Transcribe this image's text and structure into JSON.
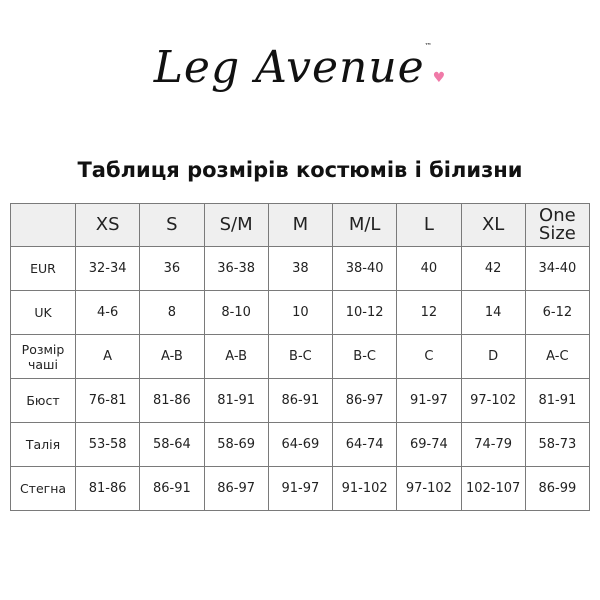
{
  "brand": {
    "logo_text": "Leg Avenue",
    "trademark": "™",
    "accent_color": "#f07aa8"
  },
  "title": "Таблиця розмірів костюмів і білизни",
  "table": {
    "columns": [
      "",
      "XS",
      "S",
      "S/M",
      "M",
      "M/L",
      "L",
      "XL",
      "One Size"
    ],
    "rows": [
      {
        "label": "EUR",
        "values": [
          "32-34",
          "36",
          "36-38",
          "38",
          "38-40",
          "40",
          "42",
          "34-40"
        ]
      },
      {
        "label": "UK",
        "values": [
          "4-6",
          "8",
          "8-10",
          "10",
          "10-12",
          "12",
          "14",
          "6-12"
        ]
      },
      {
        "label": "Розмір чаші",
        "values": [
          "A",
          "A-B",
          "A-B",
          "B-C",
          "B-C",
          "C",
          "D",
          "A-C"
        ]
      },
      {
        "label": "Бюст",
        "values": [
          "76-81",
          "81-86",
          "81-91",
          "86-91",
          "86-97",
          "91-97",
          "97-102",
          "81-91"
        ]
      },
      {
        "label": "Талія",
        "values": [
          "53-58",
          "58-64",
          "58-69",
          "64-69",
          "64-74",
          "69-74",
          "74-79",
          "58-73"
        ]
      },
      {
        "label": "Стегна",
        "values": [
          "81-86",
          "86-91",
          "86-97",
          "91-97",
          "91-102",
          "97-102",
          "102-107",
          "86-99"
        ]
      }
    ]
  }
}
